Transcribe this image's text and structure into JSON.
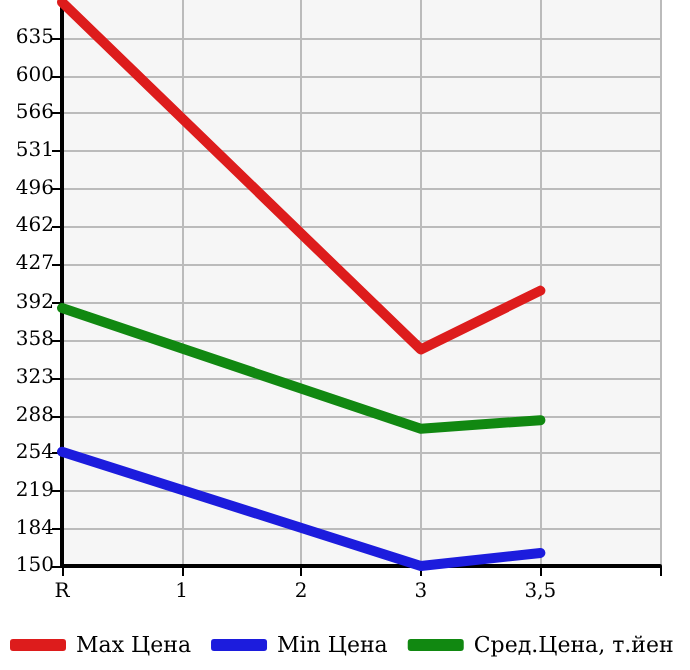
{
  "chart_data": {
    "type": "line",
    "categories": [
      "R",
      "1",
      "2",
      "3",
      "3,5",
      null
    ],
    "series": [
      {
        "name": "Max Цена",
        "color": "#dd1c1c",
        "values": [
          668,
          null,
          null,
          349,
          403,
          null
        ]
      },
      {
        "name": "Min Цена",
        "color": "#1c1cdd",
        "values": [
          255,
          null,
          null,
          150,
          162,
          null
        ]
      },
      {
        "name": "Сред.Цена, т.йен",
        "color": "#118811",
        "values": [
          387,
          null,
          null,
          276,
          284,
          null
        ]
      }
    ],
    "ylim": [
      150,
      670
    ],
    "yticks": [
      150,
      184,
      219,
      254,
      288,
      323,
      358,
      392,
      427,
      462,
      496,
      531,
      566,
      600,
      635
    ],
    "grid": true,
    "legend": "bottom",
    "marker": "none",
    "line_style": "solid"
  }
}
